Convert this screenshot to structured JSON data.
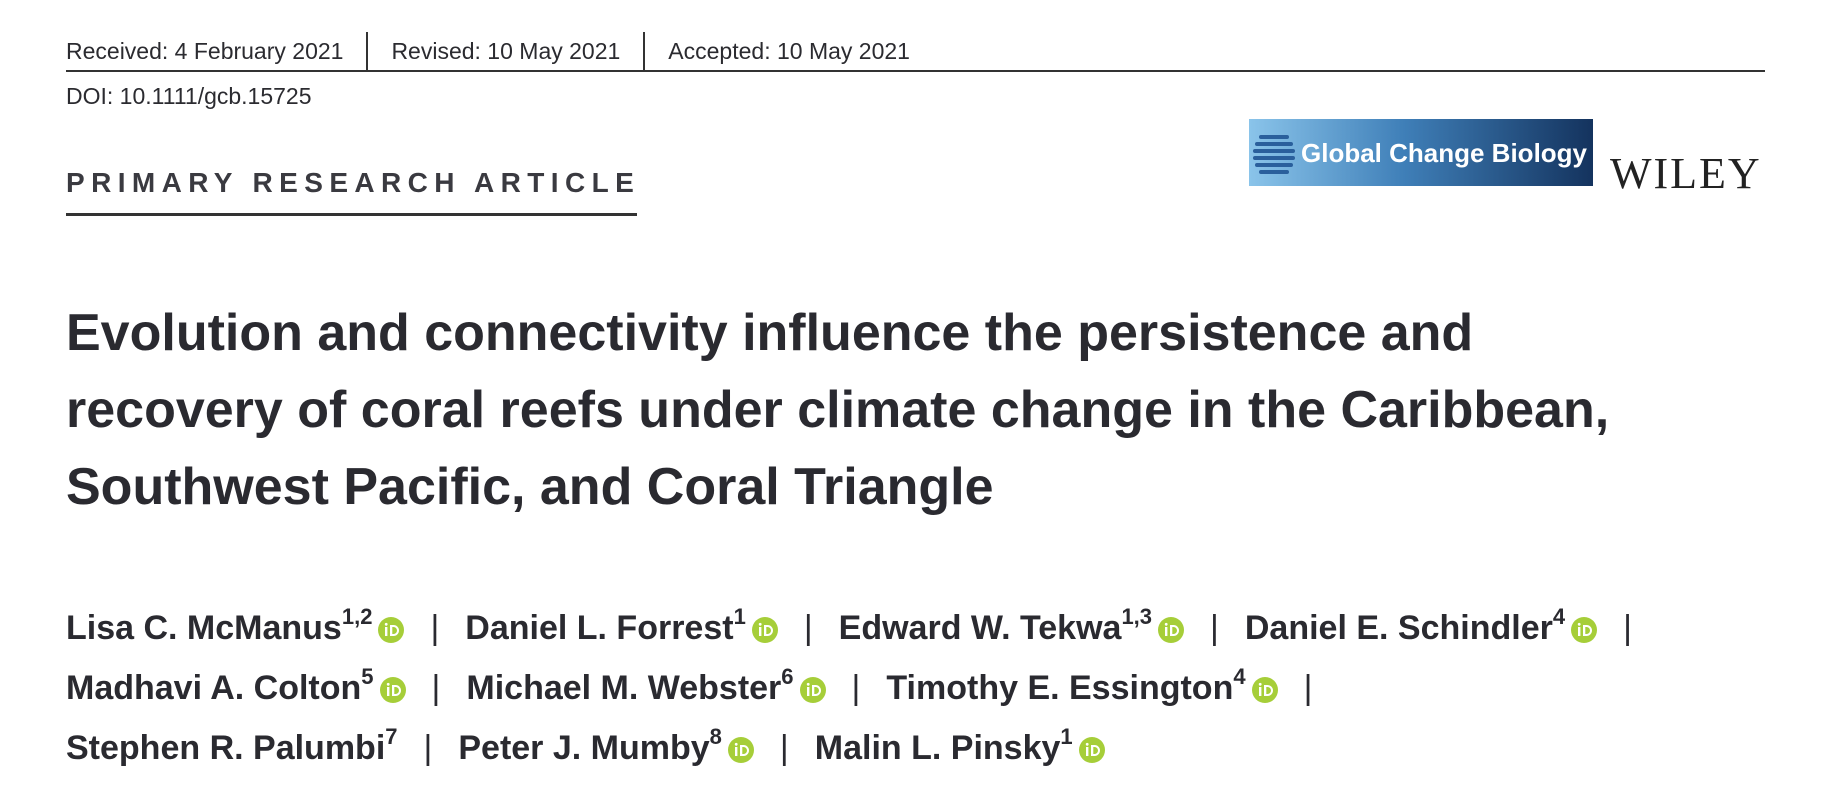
{
  "header": {
    "received": "Received: 4 February 2021",
    "revised": "Revised: 10 May 2021",
    "accepted": "Accepted: 10 May 2021",
    "doi": "DOI: 10.1111/gcb.15725",
    "article_type": "PRIMARY RESEARCH ARTICLE",
    "journal": "Global Change Biology",
    "publisher": "WILEY"
  },
  "title_lines": [
    "Evolution and connectivity influence the persistence and",
    "recovery of coral reefs under climate change in the Caribbean,",
    "Southwest Pacific, and Coral Triangle"
  ],
  "author_lines": [
    [
      {
        "name": "Lisa C. McManus",
        "affiliations": "1,2"
      },
      {
        "name": "Daniel L. Forrest",
        "affiliations": "1"
      },
      {
        "name": "Edward W. Tekwa",
        "affiliations": "1,3"
      },
      {
        "name": "Daniel E. Schindler",
        "affiliations": "4"
      }
    ],
    [
      {
        "name": "Madhavi A. Colton",
        "affiliations": "5"
      },
      {
        "name": "Michael M. Webster",
        "affiliations": "6"
      },
      {
        "name": "Timothy E. Essington",
        "affiliations": "4"
      }
    ],
    [
      {
        "name": "Stephen R. Palumbi",
        "affiliations": "7",
        "orcid": false
      },
      {
        "name": "Peter J. Mumby",
        "affiliations": "8"
      },
      {
        "name": "Malin L. Pinsky",
        "affiliations": "1"
      }
    ]
  ]
}
